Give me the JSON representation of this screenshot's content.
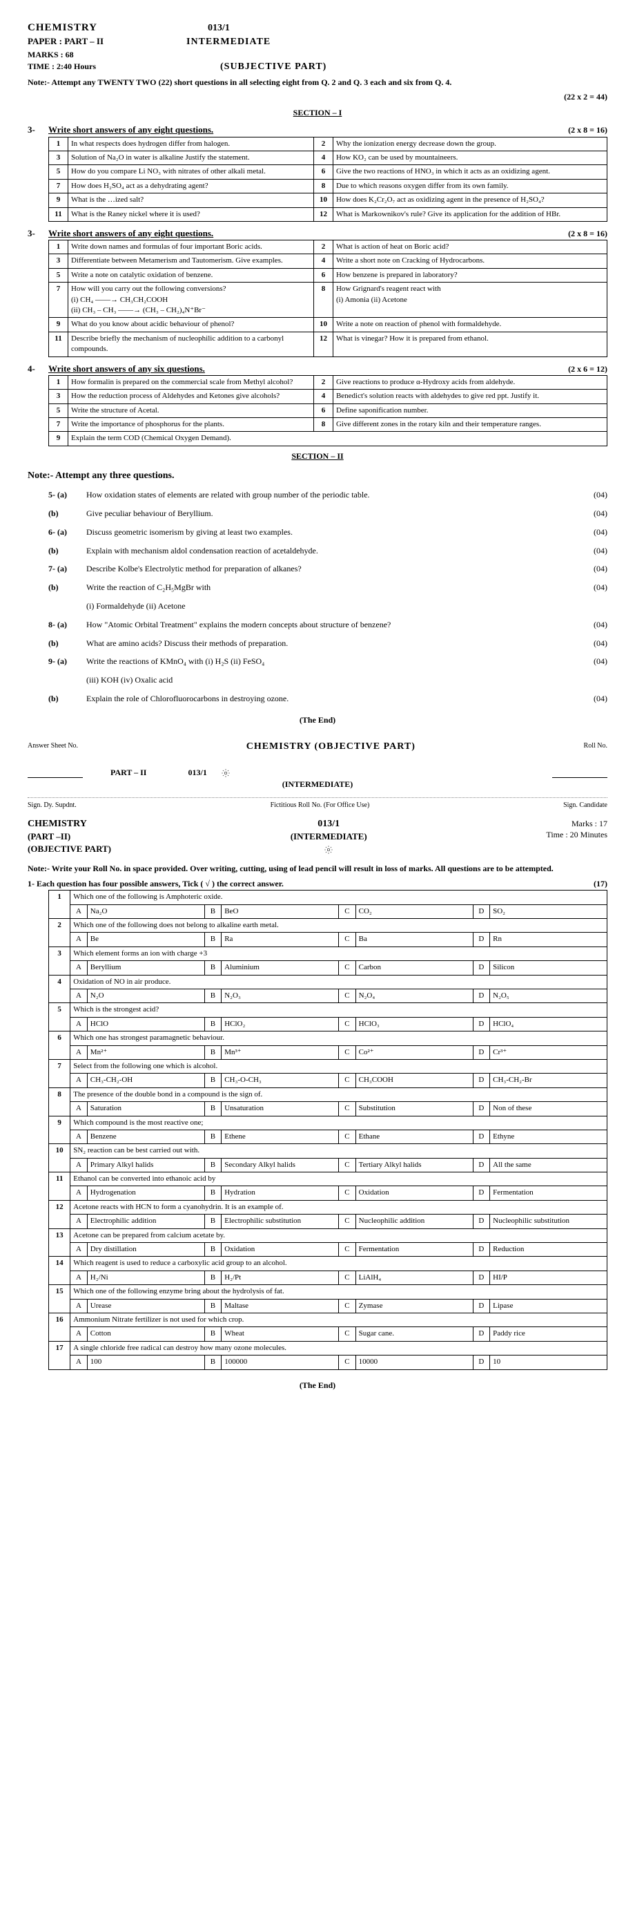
{
  "header": {
    "subject": "CHEMISTRY",
    "code": "013/1",
    "paper": "PAPER : PART – II",
    "level": "INTERMEDIATE",
    "marks": "MARKS : 68",
    "time": "TIME : 2:40 Hours",
    "part": "(SUBJECTIVE PART)",
    "note": "Note:- Attempt any TWENTY TWO (22) short questions in all selecting eight from Q. 2 and Q. 3 each and six from Q. 4.",
    "calc": "(22 x 2 = 44)",
    "section1": "SECTION – I"
  },
  "q3a": {
    "num": "3-",
    "title": "Write short answers of any eight questions.",
    "marks": "(2 x 8 = 16)",
    "rows": [
      [
        "1",
        "In what respects does hydrogen differ from halogen.",
        "2",
        "Why the ionization energy decrease down the group."
      ],
      [
        "3",
        "Solution of Na₂O in water is alkaline Justify the statement.",
        "4",
        "How KO₂ can be used by mountaineers."
      ],
      [
        "5",
        "How do you compare Li NO₃ with nitrates of other alkali metal.",
        "6",
        "Give the two reactions of HNO₃ in which it acts as an oxidizing agent."
      ],
      [
        "7",
        "How does H₂SO₄ act as a dehydrating agent?",
        "8",
        "Due to which reasons oxygen differ from its own family."
      ],
      [
        "9",
        "What is the …ized salt?",
        "10",
        "How does K₂Cr₂O₇ act as oxidizing agent in the presence of H₂SO₄?"
      ],
      [
        "11",
        "What is the Raney nickel where it is used?",
        "12",
        "What is Markownikov's rule? Give its application for the addition of HBr."
      ]
    ]
  },
  "q3b": {
    "num": "3-",
    "title": "Write short answers of any eight questions.",
    "marks": "(2 x 8 = 16)",
    "rows": [
      [
        "1",
        "Write down names and formulas of four important Boric acids.",
        "2",
        "What is action of heat on Boric acid?"
      ],
      [
        "3",
        "Differentiate between Metamerism and Tautomerism. Give examples.",
        "4",
        "Write a short note on Cracking of Hydrocarbons."
      ],
      [
        "5",
        "Write a note on catalytic oxidation of benzene.",
        "6",
        "How benzene is prepared in laboratory?"
      ],
      [
        "7",
        "How will you carry out the following conversions?\n(i) CH₄ ——→ CH₃CH₂COOH\n(ii) CH₃ – CH₃ ——→ (CH₃ – CH₂)₄N⁺Br⁻",
        "8",
        "How Grignard's reagent react with\n(i) Amonia   (ii) Acetone"
      ],
      [
        "9",
        "What do you know about acidic behaviour of phenol?",
        "10",
        "Write a note on reaction of phenol with formaldehyde."
      ],
      [
        "11",
        "Describe briefly the mechanism of nucleophilic addition to a carbonyl compounds.",
        "12",
        "What is vinegar? How it is prepared from ethanol."
      ]
    ]
  },
  "q4": {
    "num": "4-",
    "title": "Write short answers of any six questions.",
    "marks": "(2 x 6 = 12)",
    "rows": [
      [
        "1",
        "How formalin is prepared on the commercial scale from Methyl alcohol?",
        "2",
        "Give reactions to produce α-Hydroxy acids from aldehyde."
      ],
      [
        "3",
        "How the reduction process of Aldehydes and Ketones give alcohols?",
        "4",
        "Benedict's solution reacts with aldehydes to give red ppt. Justify it."
      ],
      [
        "5",
        "Write the structure of Acetal.",
        "6",
        "Define saponification number."
      ],
      [
        "7",
        "Write the importance of phosphorus for the plants.",
        "8",
        "Give different zones in the rotary kiln and their temperature ranges."
      ],
      [
        "9",
        "Explain the term COD (Chemical Oxygen Demand).",
        "",
        ""
      ]
    ]
  },
  "section2": {
    "hdr": "SECTION – II",
    "note": "Note:- Attempt any three questions."
  },
  "longq": [
    {
      "lbl": "5- (a)",
      "txt": "How oxidation states of elements are related with group number of the periodic table.",
      "mk": "(04)"
    },
    {
      "lbl": "(b)",
      "txt": "Give peculiar behaviour of Beryllium.",
      "mk": "(04)"
    },
    {
      "lbl": "6- (a)",
      "txt": "Discuss geometric isomerism by giving at least two examples.",
      "mk": "(04)"
    },
    {
      "lbl": "(b)",
      "txt": "Explain with mechanism aldol condensation reaction of acetaldehyde.",
      "mk": "(04)"
    },
    {
      "lbl": "7- (a)",
      "txt": "Describe Kolbe's Electrolytic method for preparation of alkanes?",
      "mk": "(04)"
    },
    {
      "lbl": "(b)",
      "txt": "Write the reaction of C₂H₅MgBr with",
      "mk": "(04)"
    },
    {
      "lbl": "",
      "txt": "(i)    Formaldehyde                                    (ii)    Acetone",
      "mk": ""
    },
    {
      "lbl": "8- (a)",
      "txt": "How \"Atomic Orbital Treatment\" explains the modern concepts about structure of benzene?",
      "mk": "(04)"
    },
    {
      "lbl": "(b)",
      "txt": "What are amino acids? Discuss their methods of preparation.",
      "mk": "(04)"
    },
    {
      "lbl": "9- (a)",
      "txt": "Write the reactions of KMnO₄ with   (i) H₂S     (ii) FeSO₄",
      "mk": "(04)"
    },
    {
      "lbl": "",
      "txt": "(iii)  KOH          (iv)  Oxalic acid",
      "mk": ""
    },
    {
      "lbl": "(b)",
      "txt": "Explain the role of Chlorofluorocarbons in destroying ozone.",
      "mk": "(04)"
    }
  ],
  "end": "(The End)",
  "obj": {
    "answersheet": "Answer Sheet No.",
    "title": "CHEMISTRY (OBJECTIVE PART)",
    "rollno": "Roll No.",
    "part": "PART – II",
    "code": "013/1",
    "level": "(INTERMEDIATE)",
    "sign1": "Sign. Dy. Supdnt.",
    "fict": "Fictitious Roll No. (For Office Use)",
    "sign2": "Sign. Candidate",
    "subject": "CHEMISTRY",
    "code2": "013/1",
    "part2": "(PART –II)",
    "level2": "(INTERMEDIATE)",
    "marks": "Marks  : 17",
    "objpart": "(OBJECTIVE PART)",
    "time": "Time   : 20 Minutes",
    "note": "Note:- Write your Roll No. in space provided. Over writing, cutting, using of lead pencil will result in loss of marks. All questions are to be attempted.",
    "q1": "1-   Each question has four possible answers, Tick ( √ ) the correct answer.",
    "q1mk": "(17)"
  },
  "mcq": [
    {
      "n": "1",
      "q": "Which one of the following is Amphoteric oxide.",
      "a": "Na₂O",
      "b": "BeO",
      "c": "CO₂",
      "d": "SO₂"
    },
    {
      "n": "2",
      "q": "Which one of the following does not belong to alkaline earth metal.",
      "a": "Be",
      "b": "Ra",
      "c": "Ba",
      "d": "Rn"
    },
    {
      "n": "3",
      "q": "Which element forms an ion with charge +3",
      "a": "Beryllium",
      "b": "Aluminium",
      "c": "Carbon",
      "d": "Silicon"
    },
    {
      "n": "4",
      "q": "Oxidation of NO in air produce.",
      "a": "N₂O",
      "b": "N₂O₃",
      "c": "N₂O₄",
      "d": "N₂O₅"
    },
    {
      "n": "5",
      "q": "Which is the strongest acid?",
      "a": "HClO",
      "b": "HClO₂",
      "c": "HClO₃",
      "d": "HClO₄"
    },
    {
      "n": "6",
      "q": "Which one has strongest paramagnetic behaviour.",
      "a": "Mn²⁺",
      "b": "Mn³⁺",
      "c": "Co²⁺",
      "d": "Cr³⁺"
    },
    {
      "n": "7",
      "q": "Select from the following one which is alcohol.",
      "a": "CH₃-CH₂-OH",
      "b": "CH₃-O-CH₃",
      "c": "CH₃COOH",
      "d": "CH₃-CH₂-Br"
    },
    {
      "n": "8",
      "q": "The presence of the double bond in a compound is the sign of.",
      "a": "Saturation",
      "b": "Unsaturation",
      "c": "Substitution",
      "d": "Non of these"
    },
    {
      "n": "9",
      "q": "Which compound is the most reactive one;",
      "a": "Benzene",
      "b": "Ethene",
      "c": "Ethane",
      "d": "Ethyne"
    },
    {
      "n": "10",
      "q": "SN₂ reaction can be best carried out with.",
      "a": "Primary Alkyl halids",
      "b": "Secondary Alkyl halids",
      "c": "Tertiary Alkyl halids",
      "d": "All the same"
    },
    {
      "n": "11",
      "q": "Ethanol can be converted into ethanoic acid by",
      "a": "Hydrogenation",
      "b": "Hydration",
      "c": "Oxidation",
      "d": "Fermentation"
    },
    {
      "n": "12",
      "q": "Acetone reacts with HCN to form a cyanohydrin. It is an example of.",
      "a": "Electrophilic addition",
      "b": "Electrophilic substitution",
      "c": "Nucleophilic addition",
      "d": "Nucleophilic substitution"
    },
    {
      "n": "13",
      "q": "Acetone can be prepared from calcium acetate by.",
      "a": "Dry distillation",
      "b": "Oxidation",
      "c": "Fermentation",
      "d": "Reduction"
    },
    {
      "n": "14",
      "q": "Which reagent is used to reduce a carboxylic acid group to an alcohol.",
      "a": "H₂/Ni",
      "b": "H₂/Pt",
      "c": "LiAlH₄",
      "d": "HI/P"
    },
    {
      "n": "15",
      "q": "Which one of the following enzyme bring about the hydrolysis of fat.",
      "a": "Urease",
      "b": "Maltase",
      "c": "Zymase",
      "d": "Lipase"
    },
    {
      "n": "16",
      "q": "Ammonium Nitrate fertilizer is not used for which crop.",
      "a": "Cotton",
      "b": "Wheat",
      "c": "Sugar cane.",
      "d": "Paddy rice"
    },
    {
      "n": "17",
      "q": "A single chloride free radical can destroy how many ozone molecules.",
      "a": "100",
      "b": "100000",
      "c": "10000",
      "d": "10"
    }
  ],
  "end2": "(The End)"
}
